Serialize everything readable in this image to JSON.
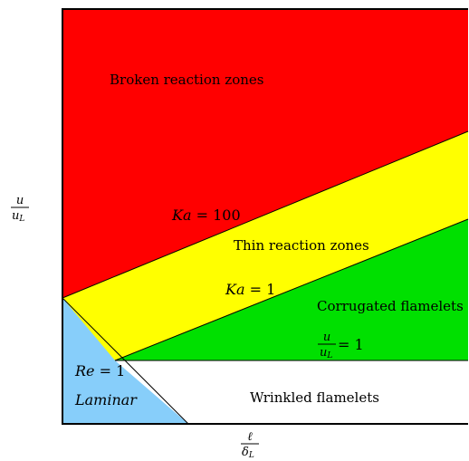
{
  "colors": {
    "broken": "#ff0000",
    "thin": "#ffff00",
    "corrugated": "#00e000",
    "wrinkled": "#ffffff",
    "laminar": "#87cefa",
    "line": "#000000",
    "background": "#ffffff"
  },
  "regions": {
    "broken": {
      "label": "Broken reaction zones"
    },
    "thin": {
      "label": "Thin reaction zones"
    },
    "corrugated": {
      "label": "Corrugated flamelets"
    },
    "wrinkled": {
      "label": "Wrinkled flamelets"
    },
    "laminar": {
      "label": "Laminar"
    }
  },
  "lines": {
    "ka100": {
      "sym": "Ka",
      "eq": " = 100"
    },
    "ka1": {
      "sym": "Ka",
      "eq": " = 1"
    },
    "re1": {
      "sym": "Re",
      "eq": " = 1"
    },
    "u_ul1": {
      "num": "u",
      "den": "u",
      "den_sub": "L",
      "eq": " = 1"
    }
  },
  "axes": {
    "y": {
      "num": "u",
      "den": "u",
      "den_sub": "L"
    },
    "x": {
      "num": "ℓ",
      "den": "δ",
      "den_sub": "L"
    }
  }
}
